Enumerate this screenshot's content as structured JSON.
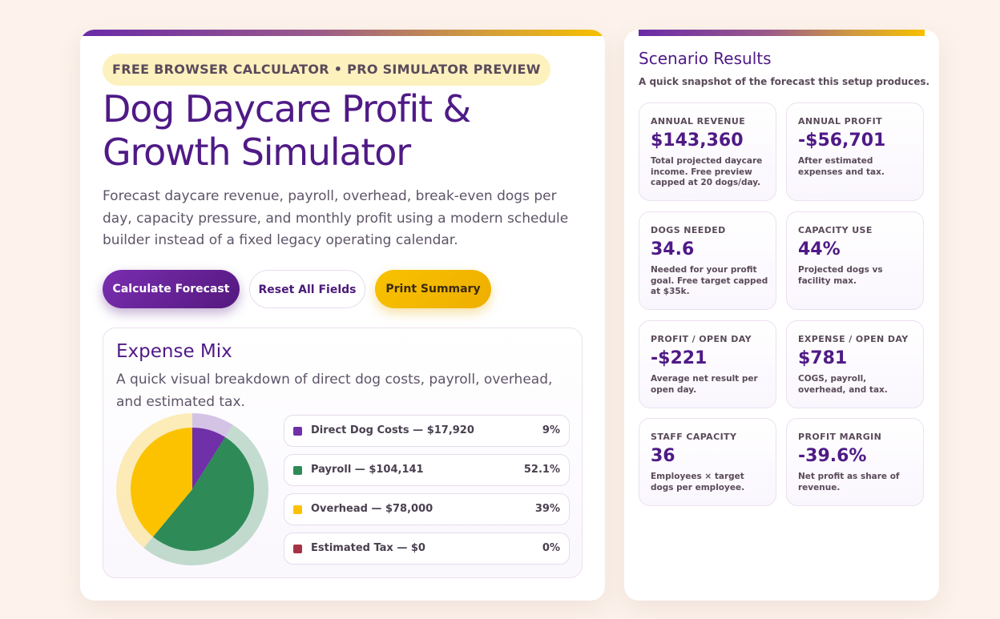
{
  "hero": {
    "badge": "FREE BROWSER CALCULATOR • PRO SIMULATOR PREVIEW",
    "title": "Dog Daycare Profit & Growth Simulator",
    "subtitle": "Forecast daycare revenue, payroll, overhead, break-even dogs per day, capacity pressure, and monthly profit using a modern schedule builder instead of a fixed legacy operating calendar."
  },
  "actions": {
    "calculate": "Calculate Forecast",
    "reset": "Reset All Fields",
    "print": "Print Summary"
  },
  "expense_mix": {
    "title": "Expense Mix",
    "description": "A quick visual breakdown of direct dog costs, payroll, overhead, and estimated tax.",
    "items": [
      {
        "label": "Direct Dog Costs — $17,920",
        "percent": "9%",
        "value": 8.95,
        "color": "#7030a8"
      },
      {
        "label": "Payroll — $104,141",
        "percent": "52.1%",
        "value": 52.05,
        "color": "#2e8b57"
      },
      {
        "label": "Overhead — $78,000",
        "percent": "39%",
        "value": 39.0,
        "color": "#fcc200"
      },
      {
        "label": "Estimated Tax — $0",
        "percent": "0%",
        "value": 0,
        "color": "#a83245"
      }
    ]
  },
  "results": {
    "title": "Scenario Results",
    "subtitle": "A quick snapshot of the forecast this setup produces.",
    "stats": [
      {
        "label": "ANNUAL REVENUE",
        "value": "$143,360",
        "note": "Total projected daycare income. Free preview capped at 20 dogs/day."
      },
      {
        "label": "ANNUAL PROFIT",
        "value": "-$56,701",
        "note": "After estimated expenses and tax."
      },
      {
        "label": "DOGS NEEDED",
        "value": "34.6",
        "note": "Needed for your profit goal. Free target capped at $35k."
      },
      {
        "label": "CAPACITY USE",
        "value": "44%",
        "note": "Projected dogs vs facility max."
      },
      {
        "label": "PROFIT / OPEN DAY",
        "value": "-$221",
        "note": "Average net result per open day."
      },
      {
        "label": "EXPENSE / OPEN DAY",
        "value": "$781",
        "note": "COGS, payroll, overhead, and tax."
      },
      {
        "label": "STAFF CAPACITY",
        "value": "36",
        "note": "Employees × target dogs per employee."
      },
      {
        "label": "PROFIT MARGIN",
        "value": "-39.6%",
        "note": "Net profit as share of revenue."
      }
    ]
  }
}
